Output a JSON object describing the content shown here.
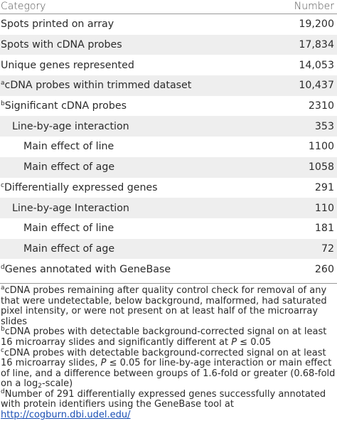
{
  "header": {
    "category": "Category",
    "number": "Number"
  },
  "rows": [
    {
      "label": "Spots printed on array",
      "sup": "",
      "value": "19,200",
      "indent": 0
    },
    {
      "label": "Spots with cDNA probes",
      "sup": "",
      "value": "17,834",
      "indent": 0
    },
    {
      "label": "Unique genes represented",
      "sup": "",
      "value": "14,053",
      "indent": 0
    },
    {
      "label": "cDNA probes within trimmed dataset",
      "sup": "a",
      "value": "10,437",
      "indent": 0
    },
    {
      "label": "Significant cDNA probes",
      "sup": "b",
      "value": "2310",
      "indent": 0
    },
    {
      "label": "Line-by-age interaction",
      "sup": "",
      "value": "353",
      "indent": 1
    },
    {
      "label": "Main effect of line",
      "sup": "",
      "value": "1100",
      "indent": 2
    },
    {
      "label": "Main effect of age",
      "sup": "",
      "value": "1058",
      "indent": 2
    },
    {
      "label": "Differentially expressed genes",
      "sup": "c",
      "value": "291",
      "indent": 0
    },
    {
      "label": "Line-by-age Interaction",
      "sup": "",
      "value": "110",
      "indent": 1
    },
    {
      "label": "Main effect of line",
      "sup": "",
      "value": "181",
      "indent": 2
    },
    {
      "label": "Main effect of age",
      "sup": "",
      "value": "72",
      "indent": 2
    },
    {
      "label": "Genes annotated with GeneBase",
      "sup": "d",
      "value": "260",
      "indent": 0
    }
  ],
  "footnotes": {
    "a": {
      "mark": "a",
      "text": "cDNA probes remaining after quality control check for removal of any that were undetectable, below background, malformed, had saturated pixel intensity, or were not present on at least half of the microarray slides"
    },
    "b": {
      "mark": "b",
      "text_pre": "cDNA probes with detectable background-corrected signal on at least 16 microarray slides and significantly different at ",
      "p": "P",
      "leq": " ≤ 0.05"
    },
    "c": {
      "mark": "c",
      "text_pre": "cDNA probes with detectable background-corrected signal on at least 16 microarray slides, ",
      "p": "P",
      "text_mid": " ≤ 0.05 for line-by-age interaction or main effect of line, and a difference between groups of 1.6-fold or greater (0.68-fold on a log",
      "sub": "2",
      "text_post": "-scale)"
    },
    "d": {
      "mark": "d",
      "text": "Number of 291 differentially expressed genes successfully annotated with protein identifiers using the GeneBase tool at ",
      "link": "http://cogburn.dbi.udel.edu/"
    }
  }
}
